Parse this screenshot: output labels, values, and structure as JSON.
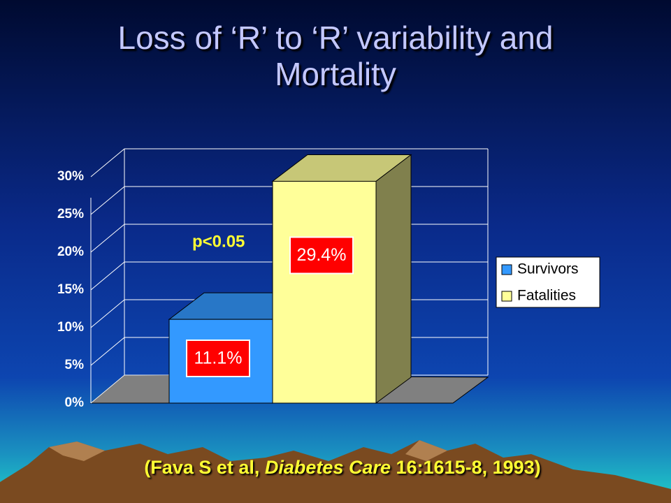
{
  "title": "Loss of ‘R’ to ‘R’ variability and Mortality",
  "chart_data": {
    "type": "bar3d",
    "series": [
      {
        "name": "Survivors",
        "color": "#3399ff",
        "values": [
          11.1
        ],
        "value_labels": [
          "11.1%"
        ]
      },
      {
        "name": "Fatalities",
        "color": "#ffff99",
        "values": [
          29.4
        ],
        "value_labels": [
          "29.4%"
        ]
      }
    ],
    "ylim": [
      0,
      30
    ],
    "yticks": [
      {
        "value": 0,
        "label": "0%"
      },
      {
        "value": 5,
        "label": "5%"
      },
      {
        "value": 10,
        "label": "10%"
      },
      {
        "value": 15,
        "label": "15%"
      },
      {
        "value": 20,
        "label": "20%"
      },
      {
        "value": 25,
        "label": "25%"
      },
      {
        "value": 30,
        "label": "30%"
      }
    ],
    "grid": true,
    "legend": "right",
    "annotation": "p<0.05"
  },
  "citation": [
    "(Fava S et al, ",
    "Diabetes Care",
    " 16:1615-8, 1993)"
  ]
}
